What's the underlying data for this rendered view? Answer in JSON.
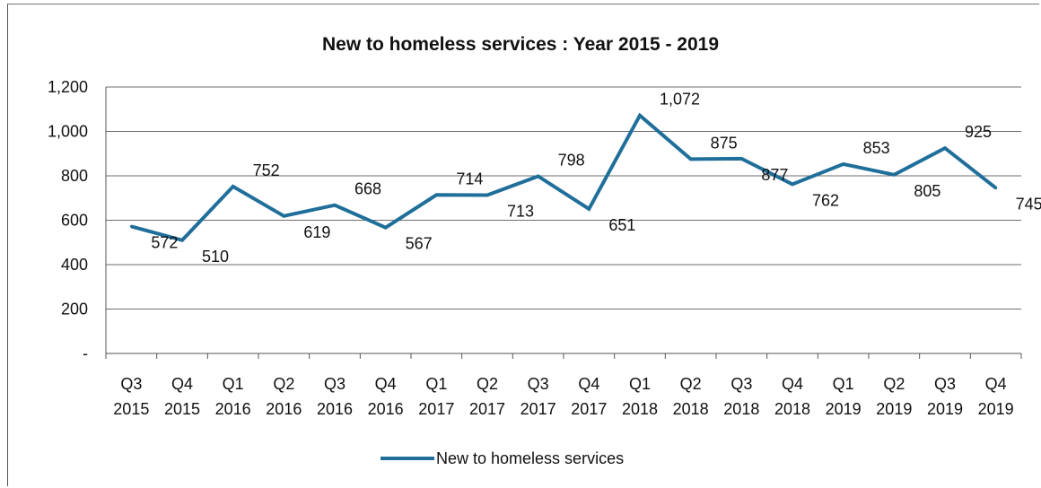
{
  "chart_data": {
    "type": "line",
    "title": "New to homeless services : Year 2015 - 2019",
    "categories": [
      [
        "Q3",
        "2015"
      ],
      [
        "Q4",
        "2015"
      ],
      [
        "Q1",
        "2016"
      ],
      [
        "Q2",
        "2016"
      ],
      [
        "Q3",
        "2016"
      ],
      [
        "Q4",
        "2016"
      ],
      [
        "Q1",
        "2017"
      ],
      [
        "Q2",
        "2017"
      ],
      [
        "Q3",
        "2017"
      ],
      [
        "Q4",
        "2017"
      ],
      [
        "Q1",
        "2018"
      ],
      [
        "Q2",
        "2018"
      ],
      [
        "Q3",
        "2018"
      ],
      [
        "Q4",
        "2018"
      ],
      [
        "Q1",
        "2019"
      ],
      [
        "Q2",
        "2019"
      ],
      [
        "Q3",
        "2019"
      ],
      [
        "Q4",
        "2019"
      ]
    ],
    "series": [
      {
        "name": "New to homeless services",
        "color": "#1f6f9a",
        "values": [
          572,
          510,
          752,
          619,
          668,
          567,
          714,
          713,
          798,
          651,
          1072,
          875,
          877,
          762,
          853,
          805,
          925,
          745
        ],
        "data_labels": [
          "572",
          "510",
          "752",
          "619",
          "668",
          "567",
          "714",
          "713",
          "798",
          "651",
          "1,072",
          "875",
          "877",
          "762",
          "853",
          "805",
          "925",
          "745"
        ]
      }
    ],
    "ylim": [
      0,
      1200
    ],
    "yticks": [
      {
        "value": 0,
        "label": "-"
      },
      {
        "value": 200,
        "label": "200"
      },
      {
        "value": 400,
        "label": "400"
      },
      {
        "value": 600,
        "label": "600"
      },
      {
        "value": 800,
        "label": "800"
      },
      {
        "value": 1000,
        "label": "1,000"
      },
      {
        "value": 1200,
        "label": "1,200"
      }
    ],
    "grid": true,
    "legend_position": "bottom"
  }
}
